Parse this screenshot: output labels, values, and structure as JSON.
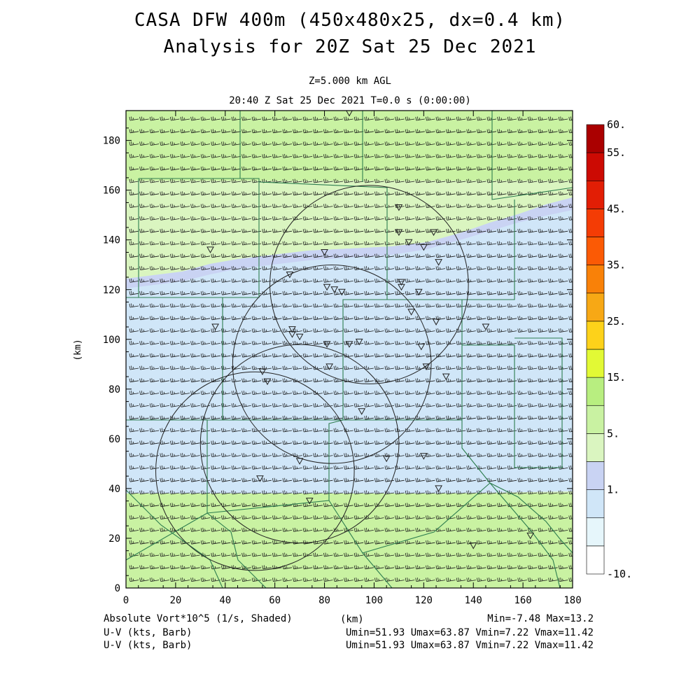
{
  "header": {
    "title": "CASA DFW 400m (450x480x25, dx=0.4 km)",
    "subtitle": "Analysis for 20Z Sat 25 Dec 2021",
    "level": "Z=5.000 km AGL",
    "time_line": "20:40 Z Sat 25 Dec 2021    T=0.0 s (0:00:00)"
  },
  "axes": {
    "x_label": "(km)",
    "y_label": "(km)",
    "x_ticks": [
      "0",
      "20",
      "40",
      "60",
      "80",
      "100",
      "120",
      "140",
      "160",
      "180"
    ],
    "y_ticks": [
      "0",
      "20",
      "40",
      "60",
      "80",
      "100",
      "120",
      "140",
      "160",
      "180"
    ],
    "x_range": [
      0,
      180
    ],
    "y_range": [
      0,
      192
    ]
  },
  "colorbar": {
    "labels": [
      "60.",
      "55.",
      "45.",
      "35.",
      "25.",
      "15.",
      "5.",
      "1.",
      "-10."
    ],
    "colors": [
      "#ffffff",
      "#e6f6fb",
      "#d0e6f8",
      "#c9d3f3",
      "#daf5c0",
      "#c9f2a2",
      "#b8ee80",
      "#e2f935",
      "#fdd21a",
      "#f7a815",
      "#f98108",
      "#fb5a05",
      "#f43c05",
      "#e21e05",
      "#cc0a03",
      "#aa0000"
    ]
  },
  "footer": {
    "field1": "Absolute Vort*10^5 (1/s, Shaded)",
    "field2": "U-V (kts, Barb)",
    "field3": "U-V (kts, Barb)",
    "xunit": "(km)",
    "minmax1": "Min=-7.48 Max=13.2",
    "minmax2": "Umin=51.93 Umax=63.87 Vmin=7.22 Vmax=11.42",
    "minmax3": "Umin=51.93 Umax=63.87 Vmin=7.22 Vmax=11.42"
  },
  "map": {
    "field_colors": {
      "green_light": "#daf5c0",
      "green": "#c9f2a2",
      "blue_light": "#d0e6f8",
      "blue": "#c9d3f3",
      "boundary": "#2e7d4f",
      "barb": "#1a1a1a"
    },
    "radars": [
      {
        "x": 90,
        "y": 191
      },
      {
        "x": 110,
        "y": 153
      },
      {
        "x": 110,
        "y": 143
      },
      {
        "x": 114,
        "y": 139
      },
      {
        "x": 120,
        "y": 137
      },
      {
        "x": 124,
        "y": 143
      },
      {
        "x": 126,
        "y": 131
      },
      {
        "x": 80,
        "y": 135
      },
      {
        "x": 66,
        "y": 126
      },
      {
        "x": 34,
        "y": 136
      },
      {
        "x": 81,
        "y": 121
      },
      {
        "x": 84,
        "y": 120
      },
      {
        "x": 87,
        "y": 119
      },
      {
        "x": 111,
        "y": 121
      },
      {
        "x": 111,
        "y": 123
      },
      {
        "x": 118,
        "y": 119
      },
      {
        "x": 115,
        "y": 111
      },
      {
        "x": 125,
        "y": 107
      },
      {
        "x": 145,
        "y": 105
      },
      {
        "x": 36,
        "y": 105
      },
      {
        "x": 67,
        "y": 104
      },
      {
        "x": 67,
        "y": 102
      },
      {
        "x": 70,
        "y": 101
      },
      {
        "x": 81,
        "y": 98
      },
      {
        "x": 90,
        "y": 98
      },
      {
        "x": 94,
        "y": 99
      },
      {
        "x": 119,
        "y": 97
      },
      {
        "x": 82,
        "y": 89
      },
      {
        "x": 121,
        "y": 89
      },
      {
        "x": 129,
        "y": 85
      },
      {
        "x": 55,
        "y": 87
      },
      {
        "x": 57,
        "y": 83
      },
      {
        "x": 95,
        "y": 71
      },
      {
        "x": 70,
        "y": 51
      },
      {
        "x": 105,
        "y": 52
      },
      {
        "x": 120,
        "y": 53
      },
      {
        "x": 54,
        "y": 44
      },
      {
        "x": 126,
        "y": 40
      },
      {
        "x": 74,
        "y": 35
      },
      {
        "x": 140,
        "y": 17
      },
      {
        "x": 163,
        "y": 21
      }
    ],
    "range_rings": [
      {
        "x": 98,
        "y": 122,
        "r": 40
      },
      {
        "x": 83,
        "y": 90,
        "r": 40
      },
      {
        "x": 70,
        "y": 58,
        "r": 40
      },
      {
        "x": 52,
        "y": 47,
        "r": 40
      }
    ]
  }
}
